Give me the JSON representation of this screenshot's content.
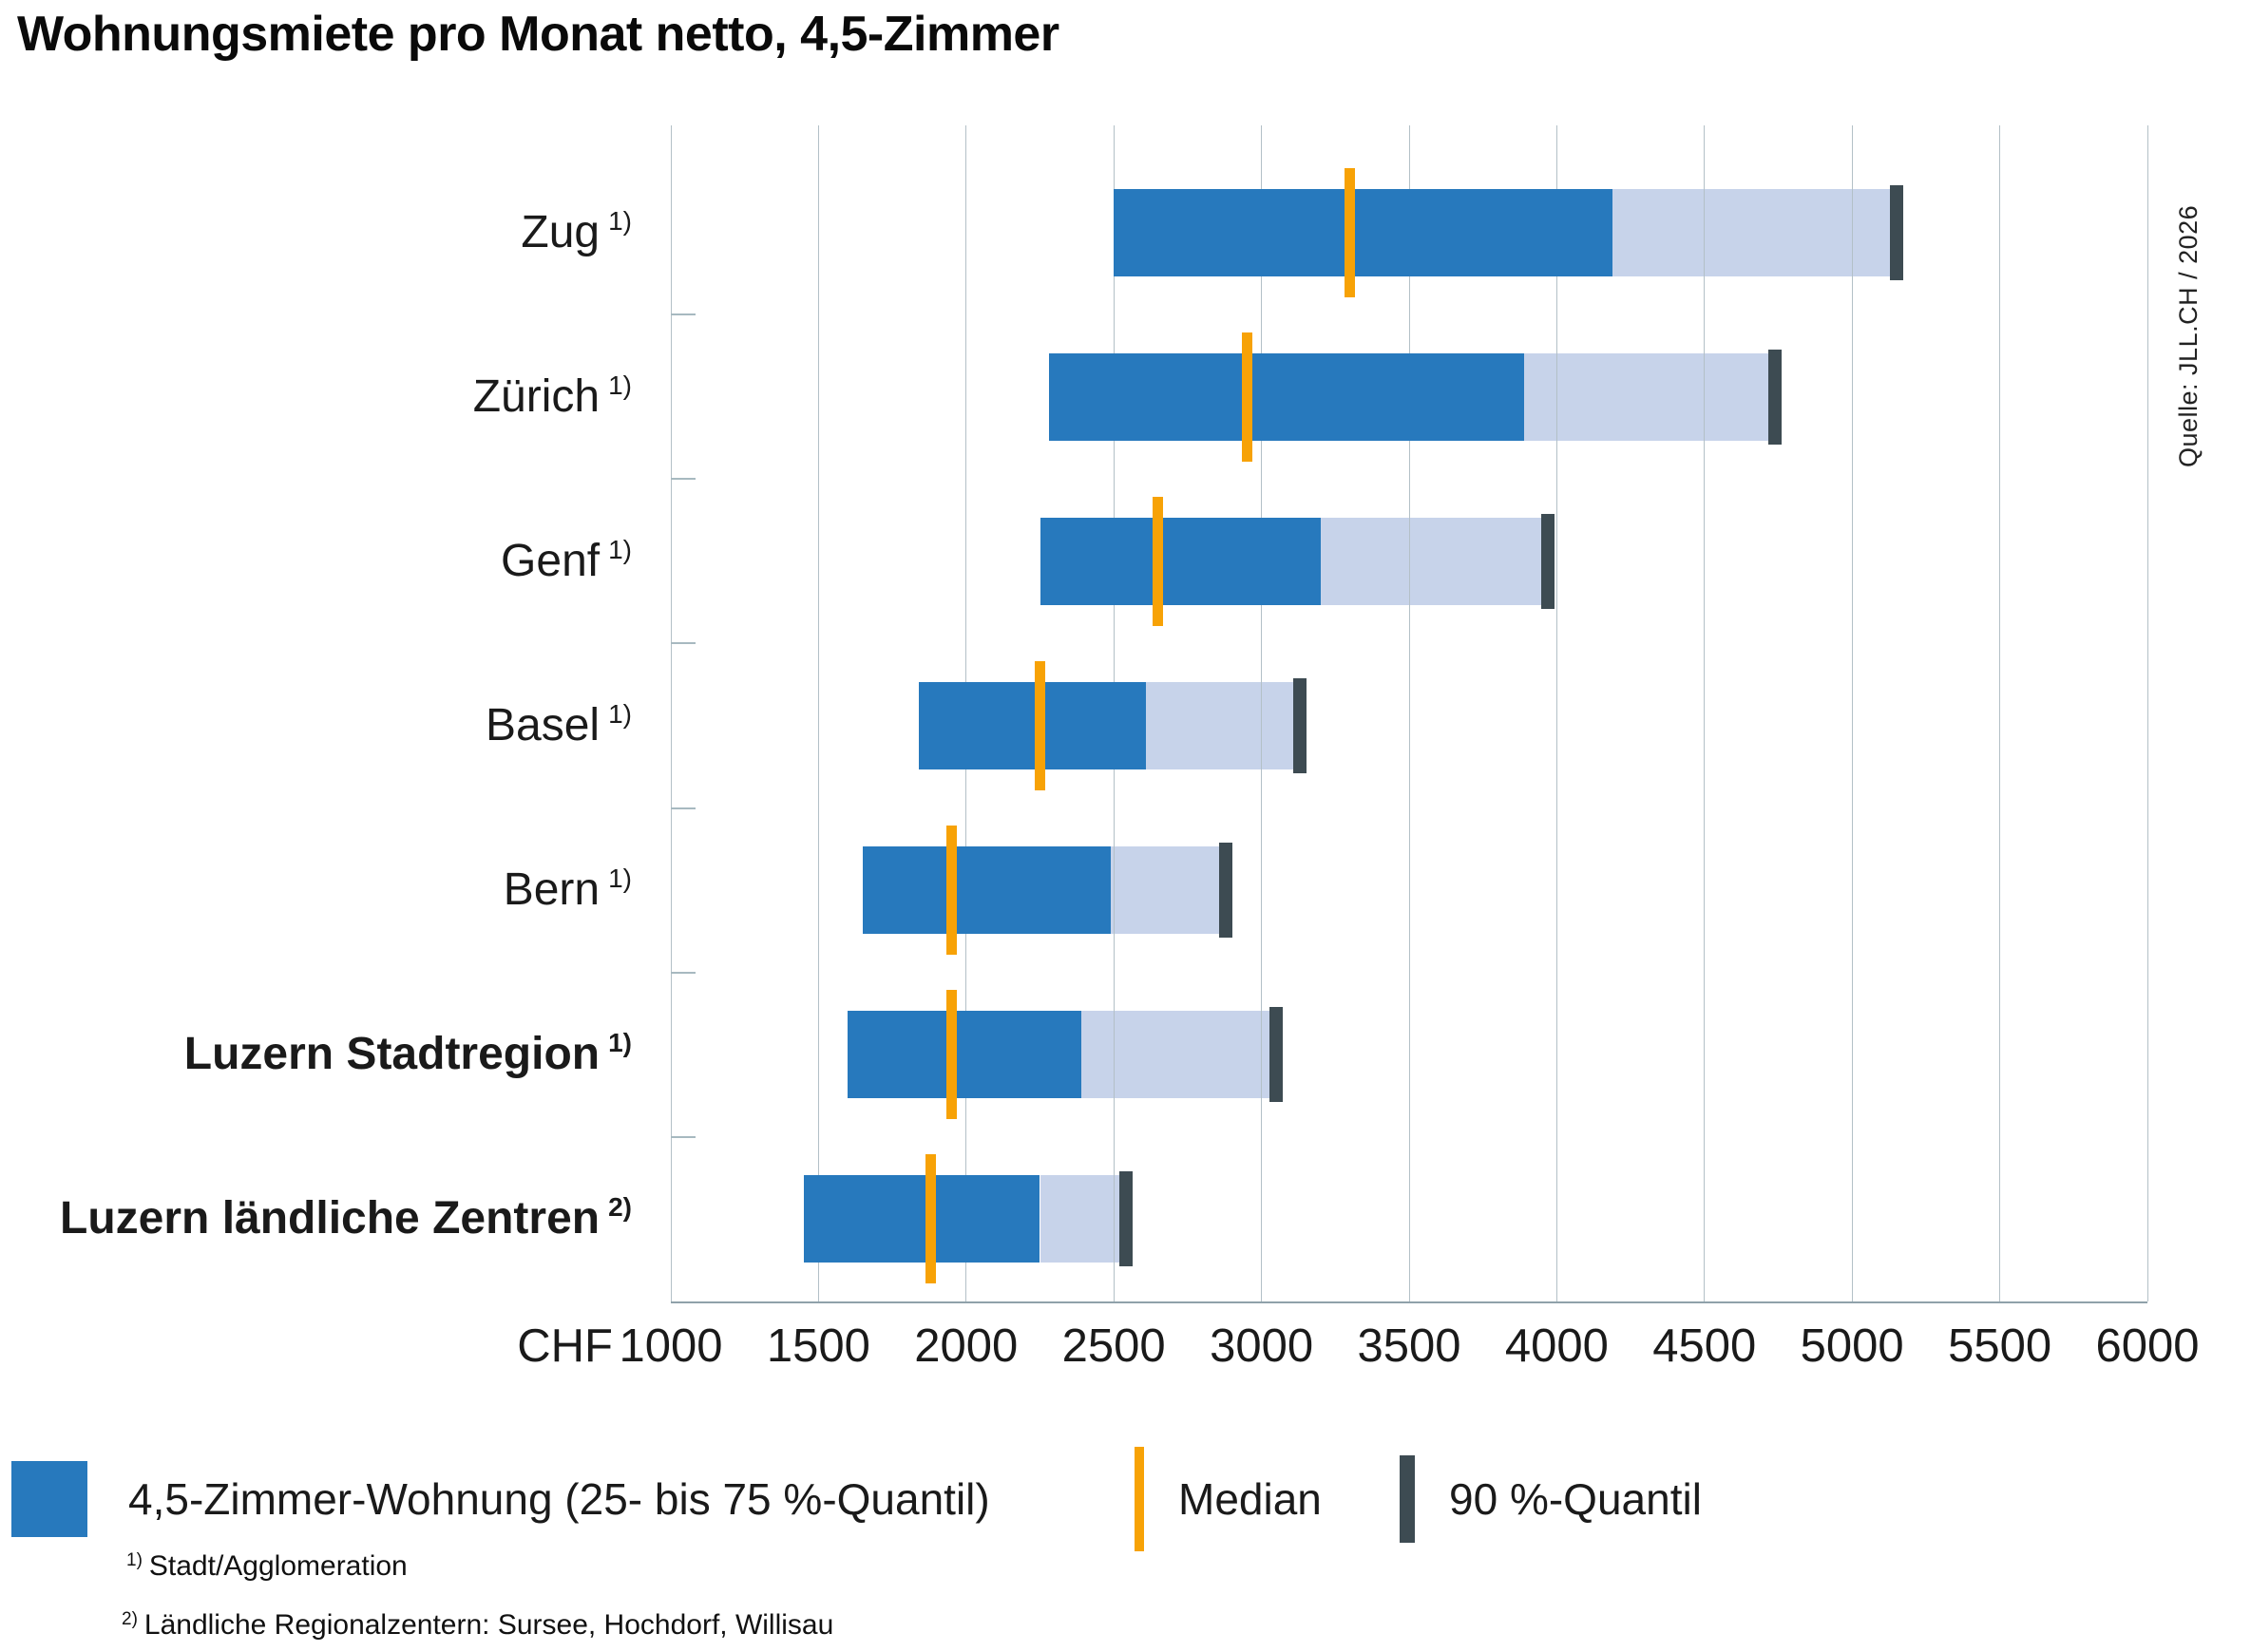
{
  "title": "Wohnungsmiete pro Monat netto, 4,5-Zimmer",
  "source_note": "Quelle: JLL.CH / 2026",
  "x_axis": {
    "currency_label": "CHF",
    "min": 1000,
    "max": 6000,
    "step": 500
  },
  "legend": {
    "iqr_label": "4,5-Zimmer-Wohnung (25- bis 75 %-Quantil)",
    "median_label": "Median",
    "q90_label": "90 %-Quantil"
  },
  "footnotes": [
    {
      "mark": "1)",
      "text": "Stadt/Agglomeration"
    },
    {
      "mark": "2)",
      "text": "Ländliche Regionalzentern: Sursee, Hochdorf, Willisau"
    }
  ],
  "colors": {
    "bar_blue": "#2779BD",
    "band_light": "#C7D3EA",
    "median_orange": "#F7A206",
    "quantile90_dark": "#3D4B52",
    "gridline": "#B3C0C7"
  },
  "chart_data": {
    "type": "bar",
    "variant": "horizontal-quantile-range",
    "title": "Wohnungsmiete pro Monat netto, 4,5-Zimmer",
    "unit": "CHF pro Monat",
    "xlabel": "CHF",
    "xlim": [
      1000,
      6000
    ],
    "x_ticks": [
      1000,
      1500,
      2000,
      2500,
      3000,
      3500,
      4000,
      4500,
      5000,
      5500,
      6000
    ],
    "grid": true,
    "legend_position": "bottom",
    "rows": [
      {
        "label": "Zug",
        "note": "1)",
        "bold": false,
        "q25": 2500,
        "median": 3300,
        "q75": 4190,
        "q90": 5150
      },
      {
        "label": "Zürich",
        "note": "1)",
        "bold": false,
        "q25": 2280,
        "median": 2950,
        "q75": 3890,
        "q90": 4740
      },
      {
        "label": "Genf",
        "note": "1)",
        "bold": false,
        "q25": 2250,
        "median": 2650,
        "q75": 3200,
        "q90": 3970
      },
      {
        "label": "Basel",
        "note": "1)",
        "bold": false,
        "q25": 1840,
        "median": 2250,
        "q75": 2610,
        "q90": 3130
      },
      {
        "label": "Bern",
        "note": "1)",
        "bold": false,
        "q25": 1650,
        "median": 1950,
        "q75": 2490,
        "q90": 2880
      },
      {
        "label": "Luzern Stadtregion",
        "note": "1)",
        "bold": true,
        "q25": 1600,
        "median": 1950,
        "q75": 2390,
        "q90": 3050
      },
      {
        "label": "Luzern ländliche Zentren",
        "note": "2)",
        "bold": true,
        "q25": 1450,
        "median": 1880,
        "q75": 2250,
        "q90": 2540
      }
    ]
  }
}
